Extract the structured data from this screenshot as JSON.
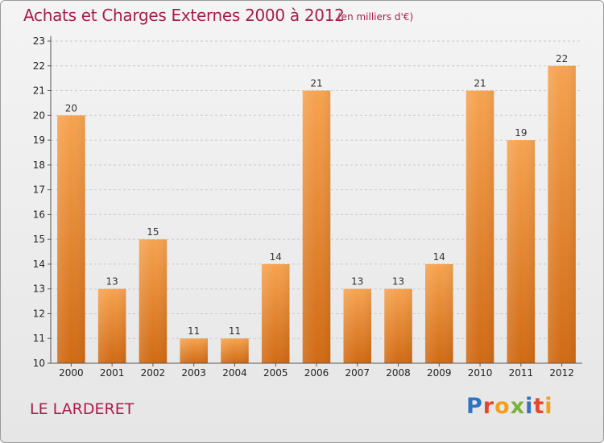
{
  "header": {
    "title": "Achats et Charges Externes 2000 à 2012",
    "subtitle": "(en milliers d'€)"
  },
  "footer": {
    "place": "LE LARDERET",
    "logo": "Proxiti"
  },
  "colors": {
    "bar_top": "#f6a350",
    "bar_bottom": "#d06a14",
    "title": "#a81c4c"
  },
  "chart_data": {
    "type": "bar",
    "categories": [
      "2000",
      "2001",
      "2002",
      "2003",
      "2004",
      "2005",
      "2006",
      "2007",
      "2008",
      "2009",
      "2010",
      "2011",
      "2012"
    ],
    "values": [
      20,
      13,
      15,
      11,
      11,
      14,
      21,
      13,
      13,
      14,
      21,
      19,
      22
    ],
    "title": "Achats et Charges Externes 2000 à 2012",
    "subtitle": "(en milliers d'€)",
    "xlabel": "",
    "ylabel": "",
    "ylim": [
      10,
      23
    ],
    "yticks": [
      10,
      11,
      12,
      13,
      14,
      15,
      16,
      17,
      18,
      19,
      20,
      21,
      22,
      23
    ],
    "grid": true,
    "legend": "none"
  }
}
